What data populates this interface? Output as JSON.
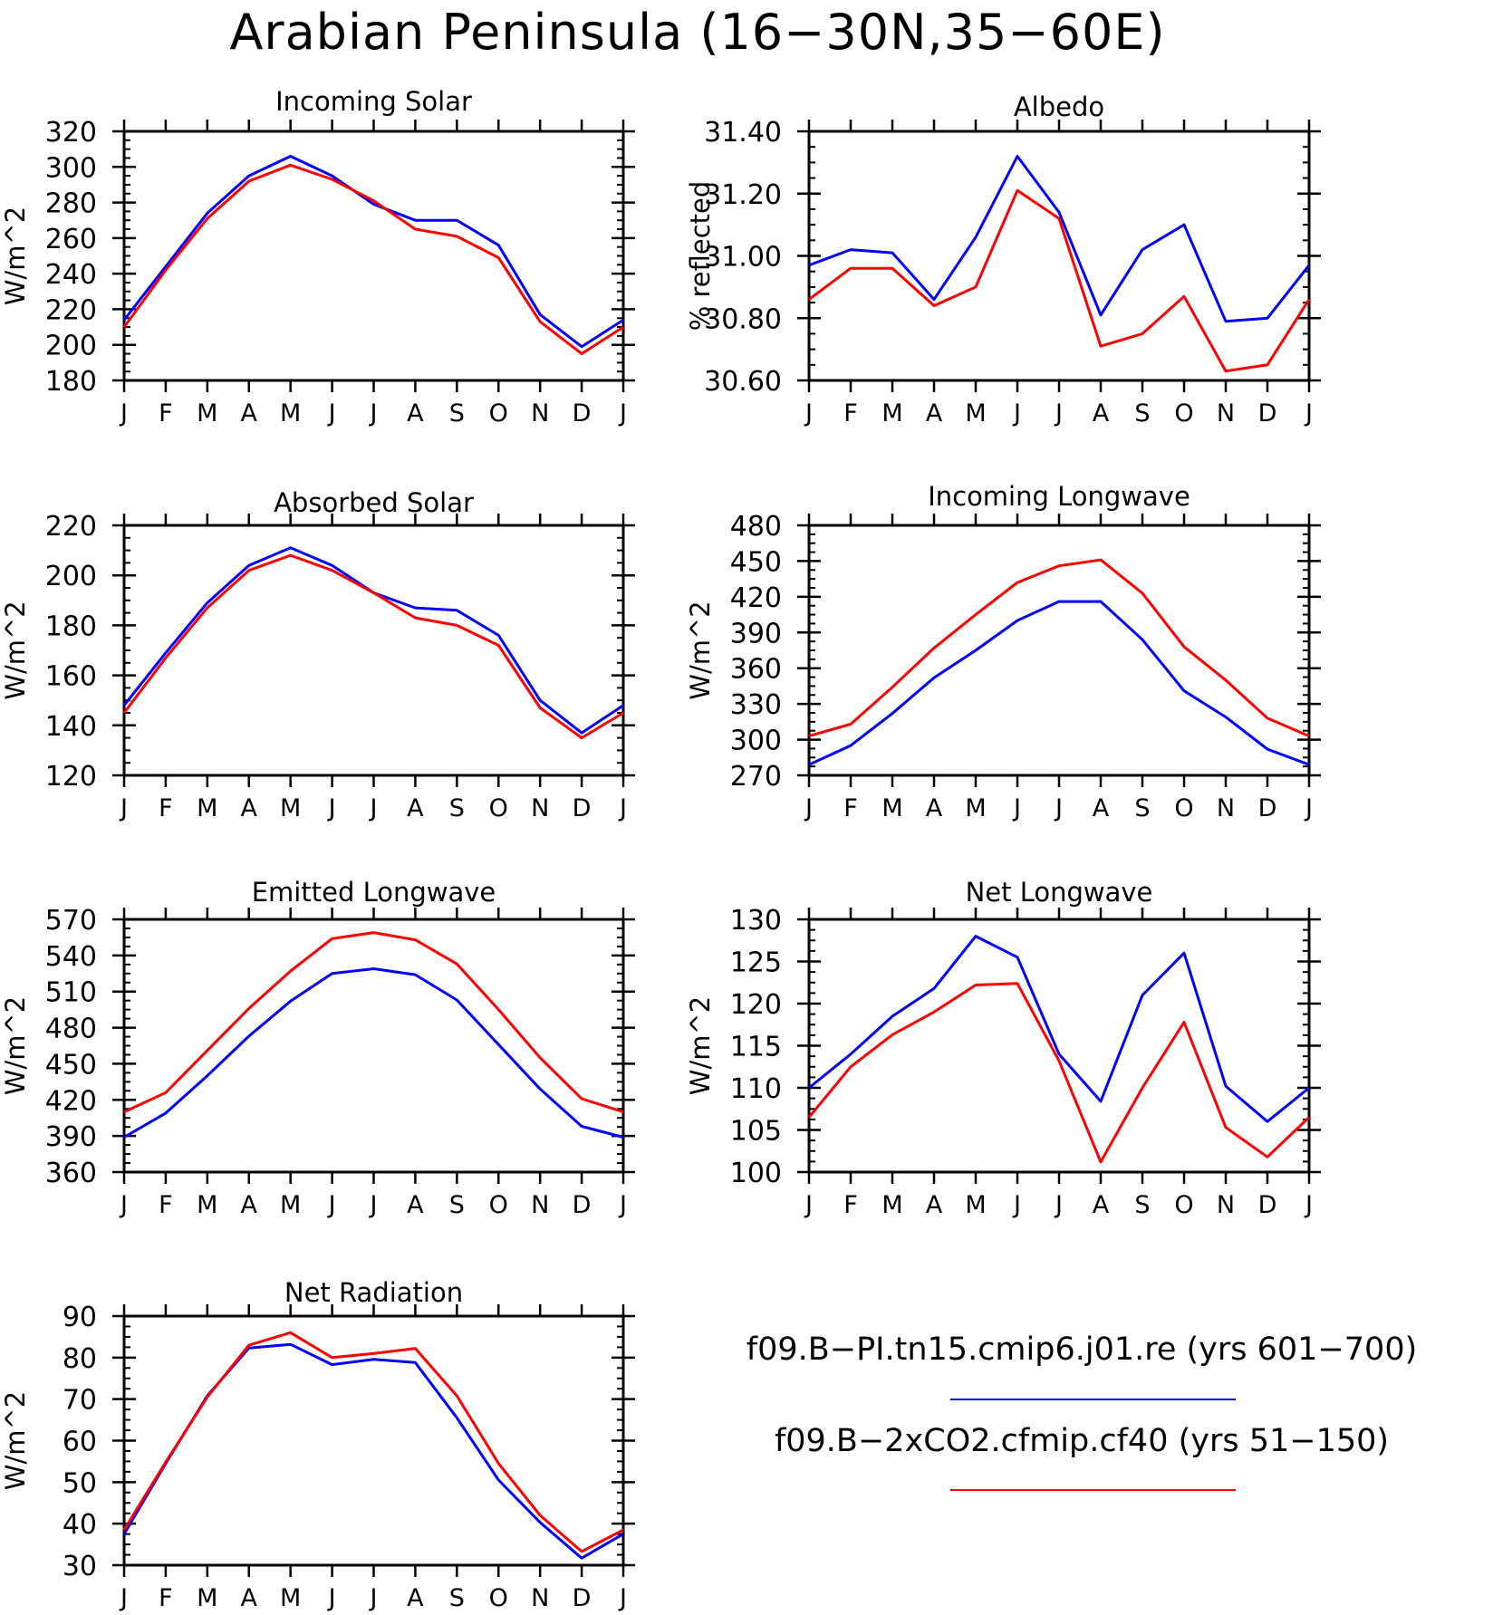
{
  "figure": {
    "title": "Arabian Peninsula (16−30N,35−60E)"
  },
  "legend": {
    "entries": [
      {
        "label": "f09.B−PI.tn15.cmip6.j01.re (yrs 601−700)",
        "color": "#0000ff"
      },
      {
        "label": "f09.B−2xCO2.cfmip.cf40 (yrs 51−150)",
        "color": "#ff0000"
      }
    ]
  },
  "chart_data": [
    {
      "type": "line",
      "title": "Incoming Solar",
      "ylabel": "W/m^2",
      "ylim": [
        180,
        320
      ],
      "yticks": [
        180,
        200,
        220,
        240,
        260,
        280,
        300,
        320
      ],
      "ytick_labels": [
        "180",
        "200",
        "220",
        "240",
        "260",
        "280",
        "300",
        "320"
      ],
      "categories": [
        "J",
        "F",
        "M",
        "A",
        "M",
        "J",
        "J",
        "A",
        "S",
        "O",
        "N",
        "D",
        "J"
      ],
      "series": [
        {
          "color": "#0000ff",
          "values": [
            214,
            244,
            274,
            295,
            306,
            295,
            279,
            270,
            270,
            256,
            217,
            199,
            214
          ]
        },
        {
          "color": "#ff0000",
          "values": [
            210,
            242,
            271,
            292,
            301,
            293,
            281,
            265,
            261,
            249,
            213,
            195,
            210
          ]
        }
      ]
    },
    {
      "type": "line",
      "title": "Albedo",
      "ylabel": "% reflected",
      "ylim": [
        30.6,
        31.4
      ],
      "yticks": [
        30.6,
        30.8,
        31.0,
        31.2,
        31.4
      ],
      "ytick_labels": [
        "30.60",
        "30.80",
        "31.00",
        "31.20",
        "31.40"
      ],
      "categories": [
        "J",
        "F",
        "M",
        "A",
        "M",
        "J",
        "J",
        "A",
        "S",
        "O",
        "N",
        "D",
        "J"
      ],
      "series": [
        {
          "color": "#0000ff",
          "values": [
            30.97,
            31.02,
            31.01,
            30.86,
            31.06,
            31.32,
            31.14,
            30.81,
            31.02,
            31.1,
            30.79,
            30.8,
            30.97
          ]
        },
        {
          "color": "#ff0000",
          "values": [
            30.86,
            30.96,
            30.96,
            30.84,
            30.9,
            31.21,
            31.12,
            30.71,
            30.75,
            30.87,
            30.63,
            30.65,
            30.86
          ]
        }
      ]
    },
    {
      "type": "line",
      "title": "Absorbed Solar",
      "ylabel": "W/m^2",
      "ylim": [
        120,
        220
      ],
      "yticks": [
        120,
        140,
        160,
        180,
        200,
        220
      ],
      "ytick_labels": [
        "120",
        "140",
        "160",
        "180",
        "200",
        "220"
      ],
      "categories": [
        "J",
        "F",
        "M",
        "A",
        "M",
        "J",
        "J",
        "A",
        "S",
        "O",
        "N",
        "D",
        "J"
      ],
      "series": [
        {
          "color": "#0000ff",
          "values": [
            148,
            169,
            189,
            204,
            211,
            204,
            193,
            187,
            186,
            176,
            150,
            137,
            148
          ]
        },
        {
          "color": "#ff0000",
          "values": [
            145,
            167,
            187,
            202,
            208,
            202,
            193,
            183,
            180,
            172,
            147,
            135,
            145
          ]
        }
      ]
    },
    {
      "type": "line",
      "title": "Incoming Longwave",
      "ylabel": "W/m^2",
      "ylim": [
        270,
        480
      ],
      "yticks": [
        270,
        300,
        330,
        360,
        390,
        420,
        450,
        480
      ],
      "ytick_labels": [
        "270",
        "300",
        "330",
        "360",
        "390",
        "420",
        "450",
        "480"
      ],
      "categories": [
        "J",
        "F",
        "M",
        "A",
        "M",
        "J",
        "J",
        "A",
        "S",
        "O",
        "N",
        "D",
        "J"
      ],
      "series": [
        {
          "color": "#0000ff",
          "values": [
            279,
            295,
            322,
            352,
            375,
            400,
            416,
            416,
            384,
            341,
            319,
            292,
            279
          ]
        },
        {
          "color": "#ff0000",
          "values": [
            303,
            313,
            344,
            377,
            405,
            432,
            446,
            451,
            423,
            378,
            350,
            318,
            303
          ]
        }
      ]
    },
    {
      "type": "line",
      "title": "Emitted Longwave",
      "ylabel": "W/m^2",
      "ylim": [
        360,
        570
      ],
      "yticks": [
        360,
        390,
        420,
        450,
        480,
        510,
        540,
        570
      ],
      "ytick_labels": [
        "360",
        "390",
        "420",
        "450",
        "480",
        "510",
        "540",
        "570"
      ],
      "categories": [
        "J",
        "F",
        "M",
        "A",
        "M",
        "J",
        "J",
        "A",
        "S",
        "O",
        "N",
        "D",
        "J"
      ],
      "series": [
        {
          "color": "#0000ff",
          "values": [
            389,
            409,
            440,
            473,
            502,
            525,
            529,
            524,
            503,
            466,
            429,
            398,
            389
          ]
        },
        {
          "color": "#ff0000",
          "values": [
            410,
            426,
            461,
            496,
            527,
            554,
            559,
            553,
            533,
            495,
            455,
            421,
            410
          ]
        }
      ]
    },
    {
      "type": "line",
      "title": "Net Longwave",
      "ylabel": "W/m^2",
      "ylim": [
        100,
        130
      ],
      "yticks": [
        100,
        105,
        110,
        115,
        120,
        125,
        130
      ],
      "ytick_labels": [
        "100",
        "105",
        "110",
        "115",
        "120",
        "125",
        "130"
      ],
      "categories": [
        "J",
        "F",
        "M",
        "A",
        "M",
        "J",
        "J",
        "A",
        "S",
        "O",
        "N",
        "D",
        "J"
      ],
      "series": [
        {
          "color": "#0000ff",
          "values": [
            110,
            114,
            118.5,
            121.8,
            128,
            125.5,
            114,
            108.4,
            121,
            126,
            110.2,
            106,
            110
          ]
        },
        {
          "color": "#ff0000",
          "values": [
            106.5,
            112.5,
            116.3,
            119,
            122.2,
            122.4,
            113.2,
            101.2,
            110,
            117.8,
            105.3,
            101.8,
            106.5
          ]
        }
      ]
    },
    {
      "type": "line",
      "title": "Net Radiation",
      "ylabel": "W/m^2",
      "ylim": [
        30,
        90
      ],
      "yticks": [
        30,
        40,
        50,
        60,
        70,
        80,
        90
      ],
      "ytick_labels": [
        "30",
        "40",
        "50",
        "60",
        "70",
        "80",
        "90"
      ],
      "categories": [
        "J",
        "F",
        "M",
        "A",
        "M",
        "J",
        "J",
        "A",
        "S",
        "O",
        "N",
        "D",
        "J"
      ],
      "series": [
        {
          "color": "#0000ff",
          "values": [
            37.5,
            54.5,
            70.8,
            82.3,
            83.2,
            78.3,
            79.6,
            78.8,
            65.5,
            50.5,
            40.3,
            31.7,
            37.5
          ]
        },
        {
          "color": "#ff0000",
          "values": [
            38.5,
            54.8,
            70.5,
            83,
            86,
            80,
            81,
            82.2,
            70.8,
            54.5,
            42,
            33.3,
            38.5
          ]
        }
      ]
    }
  ]
}
